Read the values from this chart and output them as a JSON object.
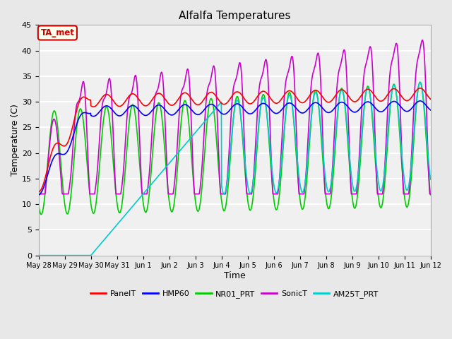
{
  "title": "Alfalfa Temperatures",
  "xlabel": "Time",
  "ylabel": "Temperature (C)",
  "ylim": [
    0,
    45
  ],
  "background_color": "#e8e8e8",
  "annotation_text": "TA_met",
  "annotation_bg": "#ffffee",
  "annotation_border": "#cc0000",
  "series": {
    "PanelT": {
      "color": "#ff0000",
      "lw": 1.2
    },
    "HMP60": {
      "color": "#0000ff",
      "lw": 1.2
    },
    "NR01_PRT": {
      "color": "#00cc00",
      "lw": 1.2
    },
    "SonicT": {
      "color": "#cc00cc",
      "lw": 1.2
    },
    "AM25T_PRT": {
      "color": "#00cccc",
      "lw": 1.2
    }
  },
  "tick_labels": [
    "May 28",
    "May 29",
    "May 30",
    "May 31",
    "Jun 1",
    "Jun 2",
    "Jun 3",
    "Jun 4",
    "Jun 5",
    "Jun 6",
    "Jun 7",
    "Jun 8",
    "Jun 9",
    "Jun 10",
    "Jun 11",
    "Jun 12"
  ]
}
